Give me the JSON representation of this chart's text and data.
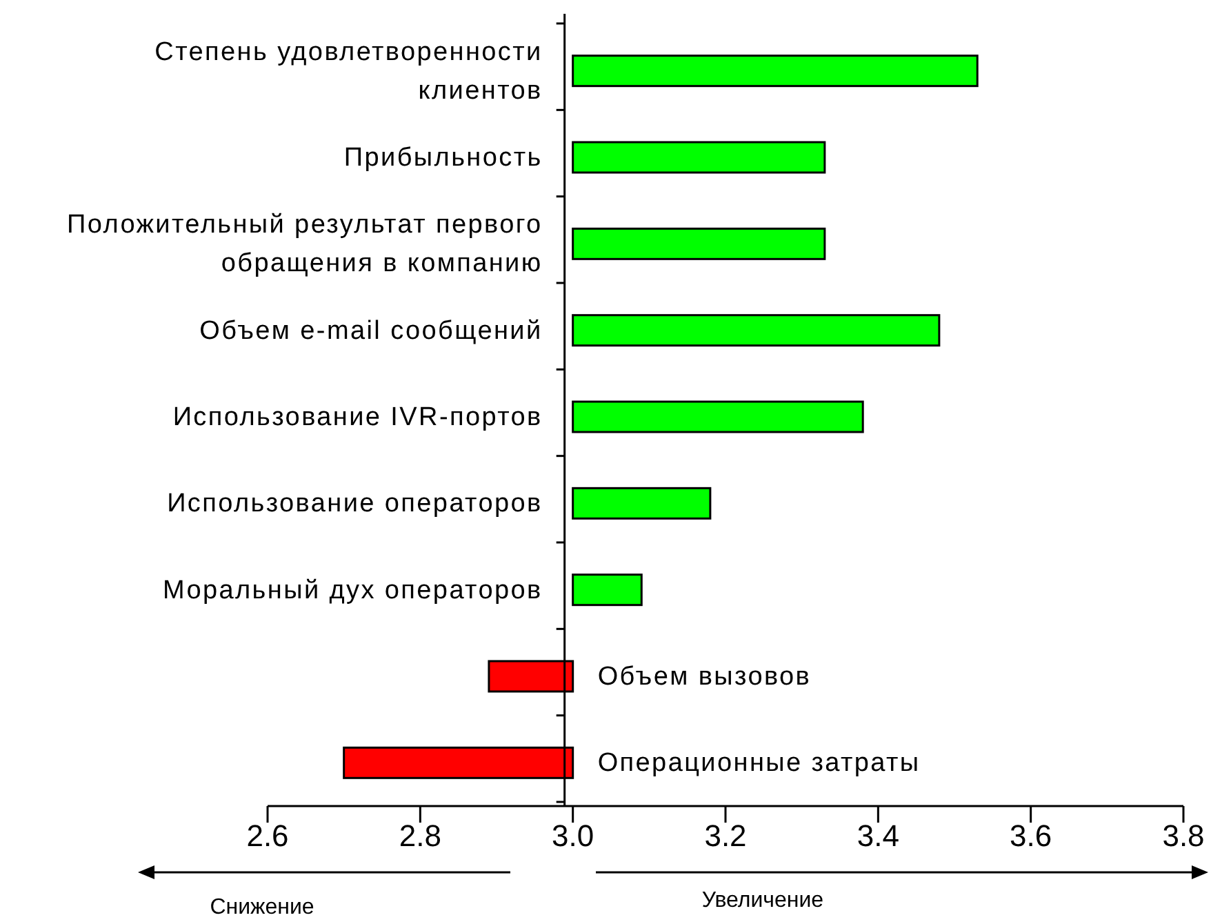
{
  "chart_data": {
    "type": "bar",
    "orientation": "horizontal",
    "categories": [
      "Степень удовлетворенности клиентов",
      "Прибыльность",
      "Положительный результат первого обращения в компанию",
      "Объем e-mail сообщений",
      "Использование IVR-портов",
      "Использование операторов",
      "Моральный дух операторов",
      "Объем вызовов",
      "Операционные затраты"
    ],
    "base": [
      3.0,
      3.0,
      3.0,
      3.0,
      3.0,
      3.0,
      3.0,
      3.0,
      3.0
    ],
    "values": [
      0.53,
      0.33,
      0.33,
      0.48,
      0.38,
      0.18,
      0.09,
      -0.11,
      -0.3
    ],
    "colors": [
      "#00ff00",
      "#00ff00",
      "#00ff00",
      "#00ff00",
      "#00ff00",
      "#00ff00",
      "#00ff00",
      "#ff0000",
      "#ff0000"
    ],
    "xlim": [
      2.6,
      3.8
    ],
    "xticks": [
      {
        "value": 2.6,
        "label": "2.6"
      },
      {
        "value": 2.8,
        "label": "2.8"
      },
      {
        "value": 3.0,
        "label": "3.0"
      },
      {
        "value": 3.2,
        "label": "3.2"
      },
      {
        "value": 3.4,
        "label": "3.4"
      },
      {
        "value": 3.6,
        "label": "3.6"
      },
      {
        "value": 3.8,
        "label": "3.8"
      }
    ],
    "annotations": [
      "Снижение",
      "Увеличение"
    ]
  }
}
